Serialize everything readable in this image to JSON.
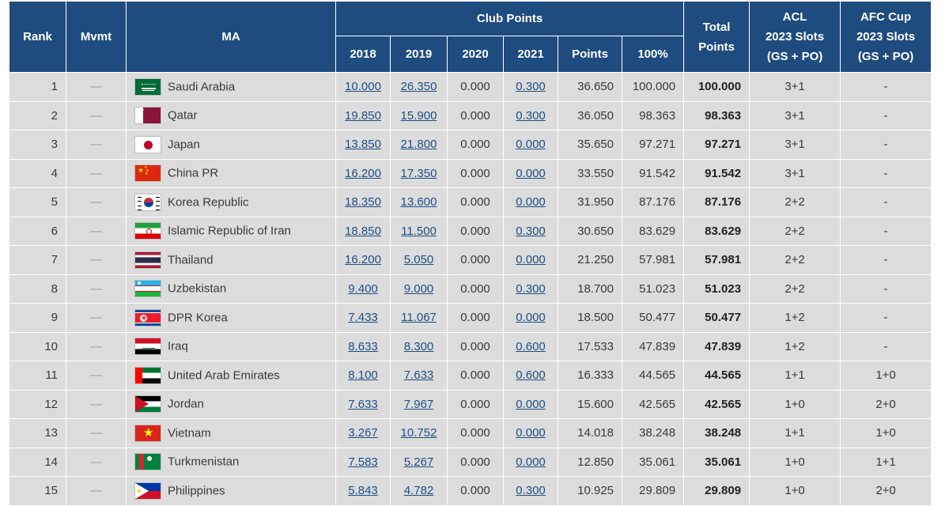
{
  "header": {
    "rank": "Rank",
    "mvmt": "Mvmt",
    "ma": "MA",
    "club_points": "Club Points",
    "years": [
      "2018",
      "2019",
      "2020",
      "2021"
    ],
    "points": "Points",
    "pct": "100%",
    "total_1": "Total",
    "total_2": "Points",
    "acl_1": "ACL",
    "acl_2": "2023 Slots",
    "acl_3": "(GS + PO)",
    "afc_1": "AFC Cup",
    "afc_2": "2023 Slots",
    "afc_3": "(GS + PO)"
  },
  "rows": [
    {
      "rank": "1",
      "mvmt": "—",
      "flag": "saudi-arabia",
      "ma": "Saudi Arabia",
      "y2018": "10.000",
      "y2019": "26.350",
      "y2020": "0.000",
      "y2021": "0.300",
      "points": "36.650",
      "pct": "100.000",
      "total": "100.000",
      "acl": "3+1",
      "afc": "-"
    },
    {
      "rank": "2",
      "mvmt": "—",
      "flag": "qatar",
      "ma": "Qatar",
      "y2018": "19.850",
      "y2019": "15.900",
      "y2020": "0.000",
      "y2021": "0.300",
      "points": "36.050",
      "pct": "98.363",
      "total": "98.363",
      "acl": "3+1",
      "afc": "-"
    },
    {
      "rank": "3",
      "mvmt": "—",
      "flag": "japan",
      "ma": "Japan",
      "y2018": "13.850",
      "y2019": "21.800",
      "y2020": "0.000",
      "y2021": "0.000",
      "points": "35.650",
      "pct": "97.271",
      "total": "97.271",
      "acl": "3+1",
      "afc": "-"
    },
    {
      "rank": "4",
      "mvmt": "—",
      "flag": "china",
      "ma": "China PR",
      "y2018": "16.200",
      "y2019": "17.350",
      "y2020": "0.000",
      "y2021": "0.000",
      "points": "33.550",
      "pct": "91.542",
      "total": "91.542",
      "acl": "3+1",
      "afc": "-"
    },
    {
      "rank": "5",
      "mvmt": "—",
      "flag": "korea",
      "ma": "Korea Republic",
      "y2018": "18.350",
      "y2019": "13.600",
      "y2020": "0.000",
      "y2021": "0.000",
      "points": "31.950",
      "pct": "87.176",
      "total": "87.176",
      "acl": "2+2",
      "afc": "-"
    },
    {
      "rank": "6",
      "mvmt": "—",
      "flag": "iran",
      "ma": "Islamic Republic of Iran",
      "y2018": "18.850",
      "y2019": "11.500",
      "y2020": "0.000",
      "y2021": "0.300",
      "points": "30.650",
      "pct": "83.629",
      "total": "83.629",
      "acl": "2+2",
      "afc": "-"
    },
    {
      "rank": "7",
      "mvmt": "—",
      "flag": "thailand",
      "ma": "Thailand",
      "y2018": "16.200",
      "y2019": "5.050",
      "y2020": "0.000",
      "y2021": "0.000",
      "points": "21.250",
      "pct": "57.981",
      "total": "57.981",
      "acl": "2+2",
      "afc": "-"
    },
    {
      "rank": "8",
      "mvmt": "—",
      "flag": "uzbekistan",
      "ma": "Uzbekistan",
      "y2018": "9.400",
      "y2019": "9.000",
      "y2020": "0.000",
      "y2021": "0.300",
      "points": "18.700",
      "pct": "51.023",
      "total": "51.023",
      "acl": "2+2",
      "afc": "-"
    },
    {
      "rank": "9",
      "mvmt": "—",
      "flag": "dpr-korea",
      "ma": "DPR Korea",
      "y2018": "7.433",
      "y2019": "11.067",
      "y2020": "0.000",
      "y2021": "0.000",
      "points": "18.500",
      "pct": "50.477",
      "total": "50.477",
      "acl": "1+2",
      "afc": "-"
    },
    {
      "rank": "10",
      "mvmt": "—",
      "flag": "iraq",
      "ma": "Iraq",
      "y2018": "8.633",
      "y2019": "8.300",
      "y2020": "0.000",
      "y2021": "0.600",
      "points": "17.533",
      "pct": "47.839",
      "total": "47.839",
      "acl": "1+2",
      "afc": "-"
    },
    {
      "rank": "11",
      "mvmt": "—",
      "flag": "uae",
      "ma": "United Arab Emirates",
      "y2018": "8.100",
      "y2019": "7.633",
      "y2020": "0.000",
      "y2021": "0.600",
      "points": "16.333",
      "pct": "44.565",
      "total": "44.565",
      "acl": "1+1",
      "afc": "1+0"
    },
    {
      "rank": "12",
      "mvmt": "—",
      "flag": "jordan",
      "ma": "Jordan",
      "y2018": "7.633",
      "y2019": "7.967",
      "y2020": "0.000",
      "y2021": "0.000",
      "points": "15.600",
      "pct": "42.565",
      "total": "42.565",
      "acl": "1+0",
      "afc": "2+0"
    },
    {
      "rank": "13",
      "mvmt": "—",
      "flag": "vietnam",
      "ma": "Vietnam",
      "y2018": "3.267",
      "y2019": "10.752",
      "y2020": "0.000",
      "y2021": "0.000",
      "points": "14.018",
      "pct": "38.248",
      "total": "38.248",
      "acl": "1+1",
      "afc": "1+0"
    },
    {
      "rank": "14",
      "mvmt": "—",
      "flag": "turkmenistan",
      "ma": "Turkmenistan",
      "y2018": "7.583",
      "y2019": "5.267",
      "y2020": "0.000",
      "y2021": "0.000",
      "points": "12.850",
      "pct": "35.061",
      "total": "35.061",
      "acl": "1+0",
      "afc": "1+1"
    },
    {
      "rank": "15",
      "mvmt": "—",
      "flag": "philippines",
      "ma": "Philippines",
      "y2018": "5.843",
      "y2019": "4.782",
      "y2020": "0.000",
      "y2021": "0.300",
      "points": "10.925",
      "pct": "29.809",
      "total": "29.809",
      "acl": "1+0",
      "afc": "2+0"
    }
  ]
}
